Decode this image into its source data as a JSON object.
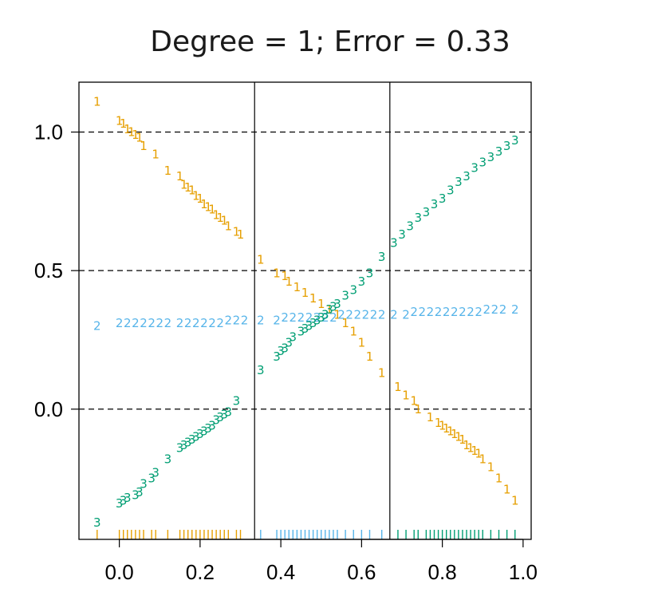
{
  "chart_data": {
    "type": "scatter",
    "title": "Degree = 1; Error = 0.33",
    "xlabel": "",
    "ylabel": "",
    "xlim": [
      -0.1,
      1.02
    ],
    "ylim": [
      -0.47,
      1.18
    ],
    "x_ticks": [
      0.0,
      0.2,
      0.4,
      0.6,
      0.8,
      1.0
    ],
    "x_tick_labels": [
      "0.0",
      "0.2",
      "0.4",
      "0.6",
      "0.8",
      "1.0"
    ],
    "y_ticks": [
      0.0,
      0.5,
      1.0
    ],
    "y_tick_labels": [
      "0.0",
      "0.5",
      "1.0"
    ],
    "grid": "dashed horizontal lines at y ticks",
    "legend": "none",
    "vertical_lines": [
      0.335,
      0.67
    ],
    "series": [
      {
        "label": "1",
        "color": "#E69F00",
        "x": [
          -0.055,
          0.0,
          0.01,
          0.02,
          0.03,
          0.04,
          0.05,
          0.06,
          0.09,
          0.12,
          0.15,
          0.16,
          0.17,
          0.18,
          0.19,
          0.2,
          0.21,
          0.22,
          0.23,
          0.24,
          0.25,
          0.26,
          0.27,
          0.29,
          0.3,
          0.35,
          0.39,
          0.41,
          0.42,
          0.44,
          0.46,
          0.48,
          0.5,
          0.52,
          0.54,
          0.56,
          0.58,
          0.6,
          0.62,
          0.65,
          0.69,
          0.71,
          0.73,
          0.74,
          0.77,
          0.79,
          0.8,
          0.81,
          0.82,
          0.83,
          0.84,
          0.85,
          0.86,
          0.87,
          0.88,
          0.89,
          0.9,
          0.92,
          0.94,
          0.96,
          0.98
        ],
        "y": [
          1.11,
          1.04,
          1.03,
          1.01,
          1.0,
          0.99,
          0.98,
          0.95,
          0.92,
          0.86,
          0.84,
          0.81,
          0.8,
          0.79,
          0.77,
          0.76,
          0.74,
          0.73,
          0.72,
          0.7,
          0.69,
          0.68,
          0.66,
          0.64,
          0.63,
          0.54,
          0.49,
          0.48,
          0.46,
          0.44,
          0.42,
          0.4,
          0.38,
          0.36,
          0.34,
          0.31,
          0.28,
          0.24,
          0.19,
          0.13,
          0.08,
          0.05,
          0.03,
          0.0,
          -0.03,
          -0.05,
          -0.06,
          -0.07,
          -0.08,
          -0.09,
          -0.1,
          -0.11,
          -0.13,
          -0.14,
          -0.15,
          -0.16,
          -0.18,
          -0.21,
          -0.25,
          -0.29,
          -0.33
        ]
      },
      {
        "label": "2",
        "color": "#56B4E9",
        "x": [
          -0.055,
          0.0,
          0.02,
          0.04,
          0.06,
          0.08,
          0.1,
          0.12,
          0.15,
          0.17,
          0.19,
          0.21,
          0.23,
          0.25,
          0.27,
          0.29,
          0.31,
          0.35,
          0.39,
          0.41,
          0.43,
          0.45,
          0.47,
          0.49,
          0.51,
          0.53,
          0.55,
          0.57,
          0.59,
          0.61,
          0.63,
          0.65,
          0.68,
          0.71,
          0.73,
          0.75,
          0.77,
          0.79,
          0.81,
          0.83,
          0.85,
          0.87,
          0.89,
          0.91,
          0.93,
          0.95,
          0.98
        ],
        "y": [
          0.3,
          0.31,
          0.31,
          0.31,
          0.31,
          0.31,
          0.31,
          0.31,
          0.31,
          0.31,
          0.31,
          0.31,
          0.31,
          0.31,
          0.32,
          0.32,
          0.32,
          0.32,
          0.32,
          0.33,
          0.33,
          0.33,
          0.33,
          0.33,
          0.33,
          0.33,
          0.34,
          0.34,
          0.34,
          0.34,
          0.34,
          0.34,
          0.34,
          0.34,
          0.35,
          0.35,
          0.35,
          0.35,
          0.35,
          0.35,
          0.35,
          0.35,
          0.35,
          0.36,
          0.36,
          0.36,
          0.36
        ]
      },
      {
        "label": "3",
        "color": "#009E73",
        "x": [
          -0.055,
          0.0,
          0.01,
          0.02,
          0.04,
          0.05,
          0.06,
          0.08,
          0.09,
          0.12,
          0.15,
          0.16,
          0.17,
          0.18,
          0.19,
          0.2,
          0.21,
          0.22,
          0.23,
          0.24,
          0.25,
          0.26,
          0.27,
          0.29,
          0.35,
          0.39,
          0.4,
          0.41,
          0.42,
          0.43,
          0.45,
          0.46,
          0.47,
          0.48,
          0.49,
          0.5,
          0.51,
          0.52,
          0.53,
          0.54,
          0.56,
          0.58,
          0.6,
          0.62,
          0.65,
          0.68,
          0.7,
          0.72,
          0.74,
          0.76,
          0.78,
          0.8,
          0.82,
          0.84,
          0.86,
          0.88,
          0.9,
          0.92,
          0.94,
          0.96,
          0.98
        ],
        "y": [
          -0.41,
          -0.34,
          -0.33,
          -0.32,
          -0.31,
          -0.3,
          -0.27,
          -0.25,
          -0.23,
          -0.18,
          -0.14,
          -0.13,
          -0.12,
          -0.11,
          -0.1,
          -0.09,
          -0.08,
          -0.07,
          -0.06,
          -0.04,
          -0.03,
          -0.02,
          -0.01,
          0.03,
          0.14,
          0.19,
          0.21,
          0.22,
          0.24,
          0.26,
          0.28,
          0.29,
          0.3,
          0.31,
          0.32,
          0.33,
          0.34,
          0.36,
          0.37,
          0.38,
          0.41,
          0.43,
          0.46,
          0.49,
          0.55,
          0.6,
          0.63,
          0.66,
          0.69,
          0.71,
          0.74,
          0.76,
          0.79,
          0.82,
          0.84,
          0.87,
          0.89,
          0.91,
          0.93,
          0.95,
          0.97
        ]
      }
    ],
    "rug": [
      {
        "color": "#E69F00",
        "x": [
          -0.055,
          0.0,
          0.01,
          0.02,
          0.03,
          0.04,
          0.05,
          0.06,
          0.08,
          0.09,
          0.12,
          0.15,
          0.16,
          0.17,
          0.18,
          0.19,
          0.2,
          0.21,
          0.22,
          0.23,
          0.24,
          0.25,
          0.26,
          0.27,
          0.29,
          0.3
        ]
      },
      {
        "color": "#56B4E9",
        "x": [
          0.35,
          0.39,
          0.4,
          0.41,
          0.42,
          0.43,
          0.44,
          0.45,
          0.46,
          0.47,
          0.48,
          0.49,
          0.5,
          0.51,
          0.52,
          0.53,
          0.54,
          0.56,
          0.58,
          0.6,
          0.62,
          0.65
        ]
      },
      {
        "color": "#009E73",
        "x": [
          0.69,
          0.71,
          0.73,
          0.74,
          0.76,
          0.77,
          0.78,
          0.79,
          0.8,
          0.81,
          0.82,
          0.83,
          0.84,
          0.85,
          0.86,
          0.87,
          0.88,
          0.89,
          0.9,
          0.92,
          0.94,
          0.96,
          0.98
        ]
      }
    ]
  }
}
